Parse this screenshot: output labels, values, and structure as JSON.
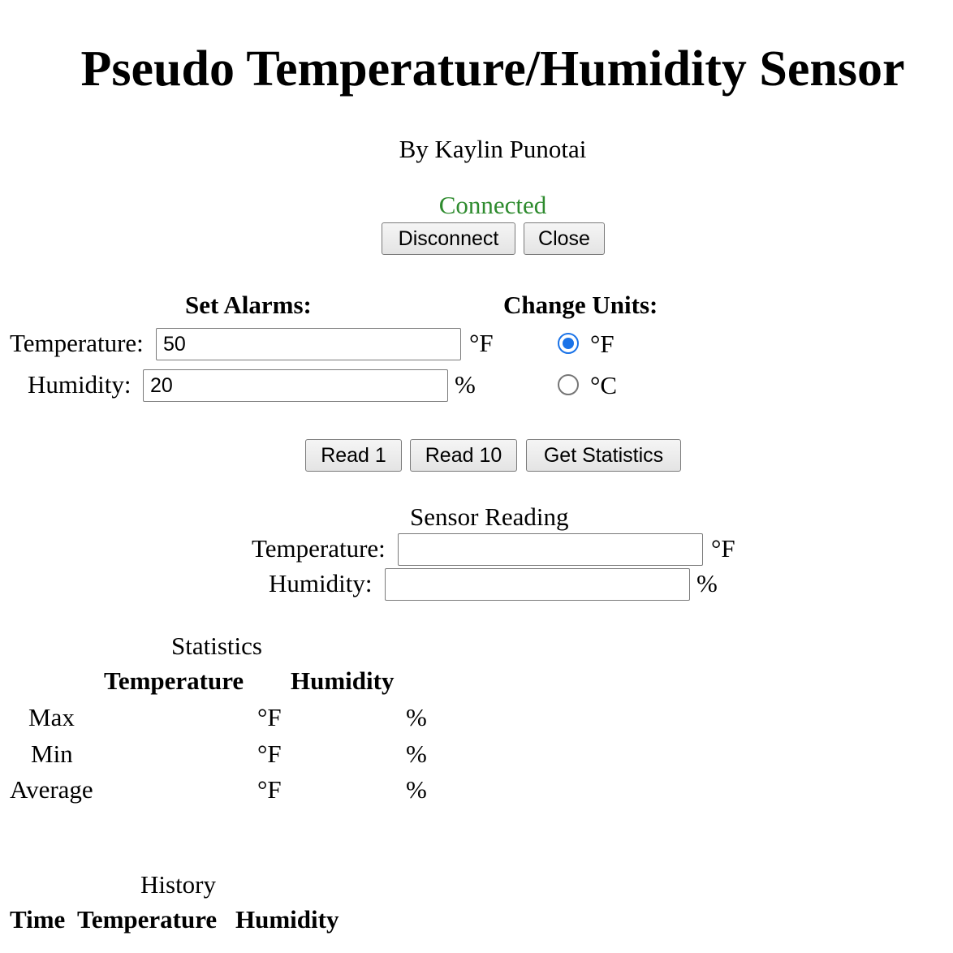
{
  "title": "Pseudo Temperature/Humidity Sensor",
  "author": "By Kaylin Punotai",
  "connection": {
    "status": "Connected",
    "status_color": "#2e8b2e",
    "disconnect_label": "Disconnect",
    "close_label": "Close"
  },
  "alarms": {
    "heading": "Set Alarms:",
    "temperature_label": "Temperature:",
    "temperature_value": "50",
    "temperature_unit": "°F",
    "humidity_label": "Humidity:",
    "humidity_value": "20",
    "humidity_unit": "%"
  },
  "units": {
    "heading": "Change Units:",
    "options": [
      "°F",
      "°C"
    ],
    "selected": "°F"
  },
  "actions": {
    "read1_label": "Read 1",
    "read10_label": "Read 10",
    "stats_label": "Get Statistics"
  },
  "sensor_reading": {
    "heading": "Sensor Reading",
    "temperature_label": "Temperature:",
    "temperature_value": "",
    "temperature_unit": "°F",
    "humidity_label": "Humidity:",
    "humidity_value": "",
    "humidity_unit": "%"
  },
  "statistics": {
    "heading": "Statistics",
    "columns": [
      "Temperature",
      "Humidity"
    ],
    "rows": [
      {
        "label": "Max",
        "temp_unit": "°F",
        "hum_unit": "%"
      },
      {
        "label": "Min",
        "temp_unit": "°F",
        "hum_unit": "%"
      },
      {
        "label": "Average",
        "temp_unit": "°F",
        "hum_unit": "%"
      }
    ]
  },
  "history": {
    "heading": "History",
    "columns": [
      "Time",
      "Temperature",
      "Humidity"
    ]
  }
}
